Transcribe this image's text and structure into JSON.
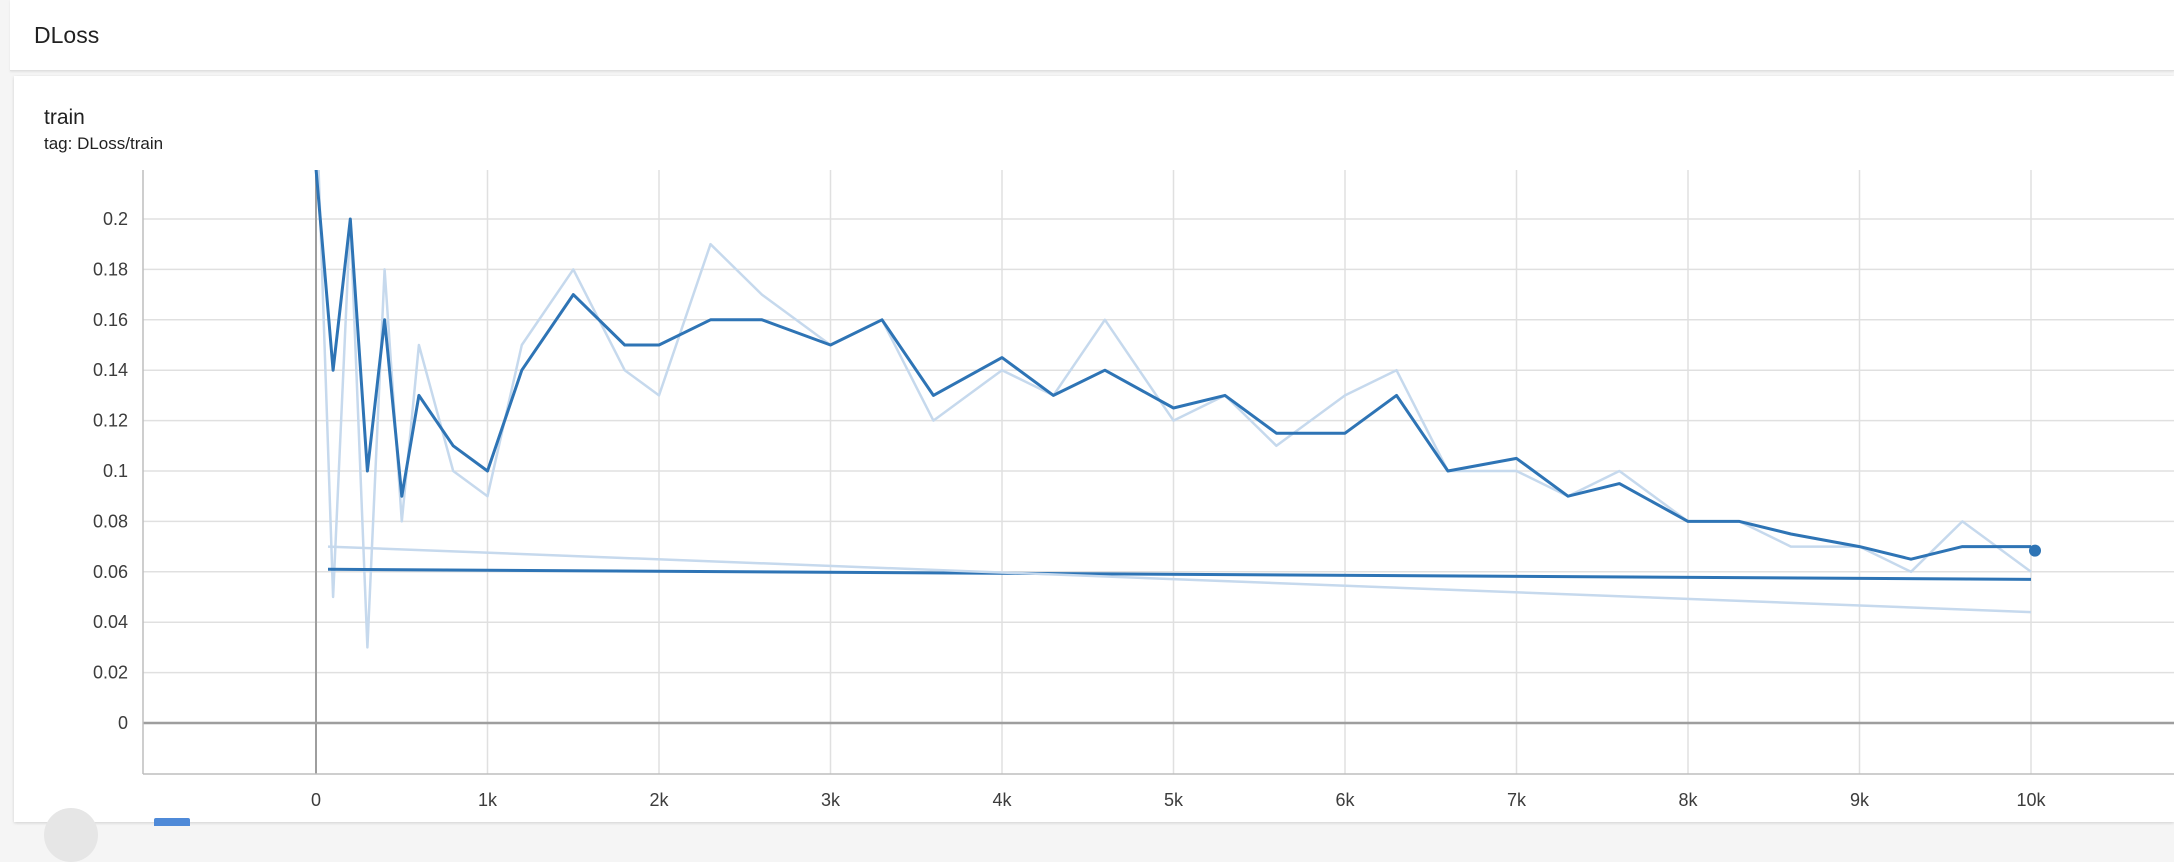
{
  "header": {
    "title": "DLoss"
  },
  "card": {
    "title": "train",
    "tag": "tag: DLoss/train"
  },
  "colors": {
    "smoothed": "#2e74b5",
    "raw": "#c6d9ed",
    "grid": "#e0e0e0",
    "axis": "#9e9e9e"
  },
  "chart_data": {
    "type": "line",
    "xlim": [
      -1000,
      10800
    ],
    "ylim": [
      -0.02,
      0.22
    ],
    "x_ticks": [
      0,
      1000,
      2000,
      3000,
      4000,
      5000,
      6000,
      7000,
      8000,
      9000,
      10000
    ],
    "x_tick_labels": [
      "0",
      "1k",
      "2k",
      "3k",
      "4k",
      "5k",
      "6k",
      "7k",
      "8k",
      "9k",
      "10k"
    ],
    "y_ticks": [
      0,
      0.02,
      0.04,
      0.06,
      0.08,
      0.1,
      0.12,
      0.14,
      0.16,
      0.18,
      0.2
    ],
    "y_tick_labels": [
      "0",
      "0.02",
      "0.04",
      "0.06",
      "0.08",
      "0.1",
      "0.12",
      "0.14",
      "0.16",
      "0.18",
      "0.2"
    ],
    "grid": true,
    "legend": "none",
    "series": [
      {
        "style": "raw",
        "x": [
          0,
          100,
          200,
          300,
          400,
          500,
          600,
          800,
          1000,
          1200,
          1500,
          1800,
          2000,
          2300,
          2600,
          3000,
          3300,
          3600,
          4000,
          4300,
          4600,
          5000,
          5300,
          5600,
          6000,
          6300,
          6600,
          7000,
          7300,
          7600,
          8000,
          8300,
          8600,
          9000,
          9300,
          9600,
          10000
        ],
        "y": [
          0.25,
          0.05,
          0.2,
          0.03,
          0.18,
          0.08,
          0.15,
          0.1,
          0.09,
          0.15,
          0.18,
          0.14,
          0.13,
          0.19,
          0.17,
          0.15,
          0.16,
          0.12,
          0.14,
          0.13,
          0.16,
          0.12,
          0.13,
          0.11,
          0.13,
          0.14,
          0.1,
          0.1,
          0.09,
          0.1,
          0.08,
          0.08,
          0.07,
          0.07,
          0.06,
          0.08,
          0.06
        ]
      },
      {
        "style": "smoothed",
        "x": [
          0,
          100,
          200,
          300,
          400,
          500,
          600,
          800,
          1000,
          1200,
          1500,
          1800,
          2000,
          2300,
          2600,
          3000,
          3300,
          3600,
          4000,
          4300,
          4600,
          5000,
          5300,
          5600,
          6000,
          6300,
          6600,
          7000,
          7300,
          7600,
          8000,
          8300,
          8600,
          9000,
          9300,
          9600,
          10000
        ],
        "y": [
          0.22,
          0.14,
          0.2,
          0.1,
          0.16,
          0.09,
          0.13,
          0.11,
          0.1,
          0.14,
          0.17,
          0.15,
          0.15,
          0.16,
          0.16,
          0.15,
          0.16,
          0.13,
          0.145,
          0.13,
          0.14,
          0.125,
          0.13,
          0.115,
          0.115,
          0.13,
          0.1,
          0.105,
          0.09,
          0.095,
          0.08,
          0.08,
          0.075,
          0.07,
          0.065,
          0.07,
          0.07
        ]
      },
      {
        "style": "smoothed",
        "x": [
          70,
          10000
        ],
        "y": [
          0.061,
          0.057
        ]
      },
      {
        "style": "raw",
        "x": [
          70,
          10000
        ],
        "y": [
          0.07,
          0.044
        ]
      }
    ]
  }
}
